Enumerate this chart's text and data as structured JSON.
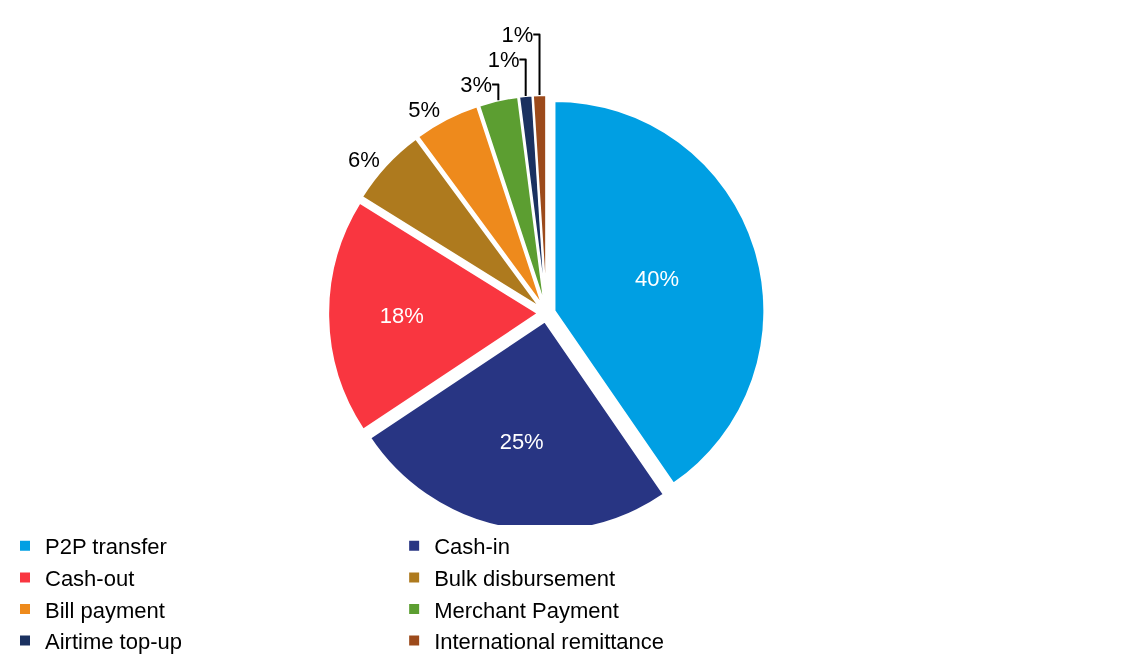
{
  "chart_data": {
    "type": "pie",
    "categories": [
      "P2P transfer",
      "Cash-in",
      "Cash-out",
      "Bulk disbursement",
      "Bill payment",
      "Merchant Payment",
      "Airtime top-up",
      "International remittance"
    ],
    "values": [
      40,
      25,
      18,
      6,
      5,
      3,
      1,
      1
    ],
    "value_labels": [
      "40%",
      "25%",
      "18%",
      "6%",
      "5%",
      "3%",
      "1%",
      "1%"
    ],
    "colors": [
      "#009fe3",
      "#283583",
      "#f93640",
      "#ae7a1e",
      "#ee8a1c",
      "#5c9e31",
      "#1b3160",
      "#9c4a1b"
    ],
    "legend": "bottom"
  }
}
